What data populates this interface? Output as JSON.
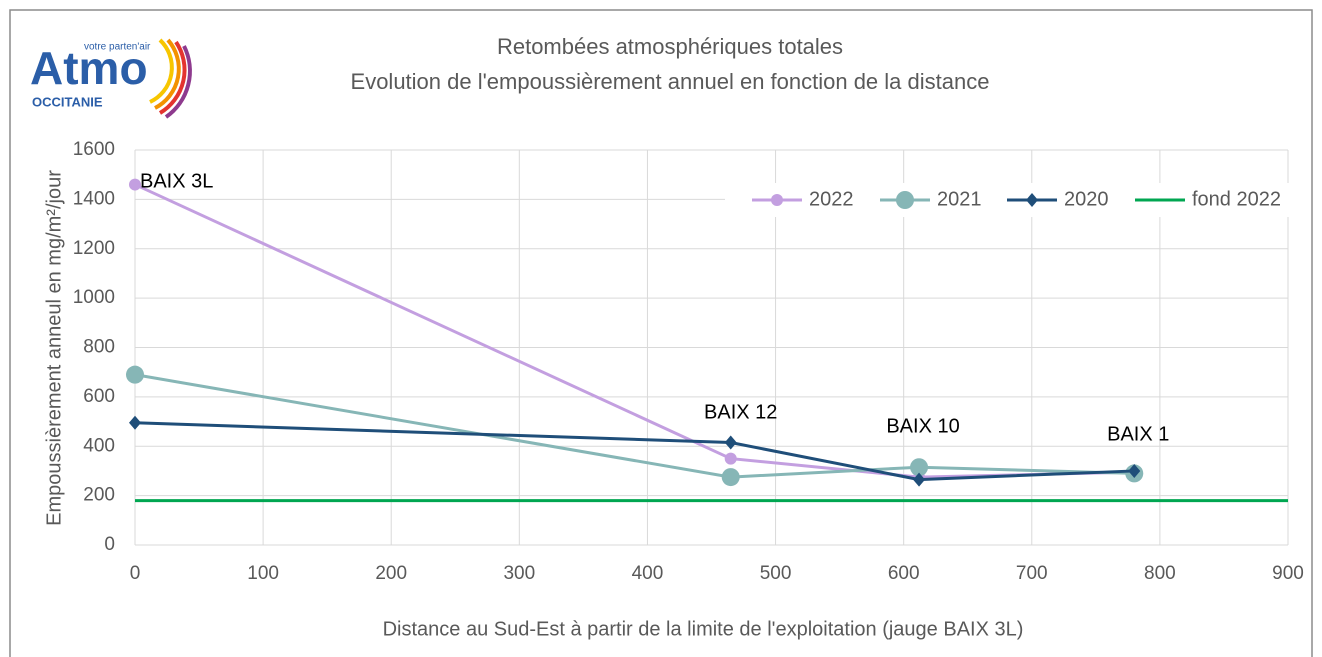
{
  "logo": {
    "tagline": "votre parten'air",
    "name": "Atmo",
    "region": "OCCITANIE"
  },
  "chart_data": {
    "type": "line",
    "title": "Retombées atmosphériques  totales",
    "subtitle": "Evolution  de l'empoussièrement  annuel en fonction de la distance",
    "x_label": "Distance au Sud-Est à partir de la limite de l'exploitation (jauge BAIX 3L)",
    "y_label": "Empoussièrement anneul en mg/m²/jour",
    "x": [
      0,
      465,
      612,
      780
    ],
    "point_labels": [
      "BAIX 3L",
      "BAIX 12",
      "BAIX 10",
      "BAIX 1"
    ],
    "series": [
      {
        "name": "2022",
        "color": "#c39fe0",
        "marker": "circle",
        "values": [
          1460,
          350,
          275,
          295
        ]
      },
      {
        "name": "2021",
        "color": "#86b6b6",
        "marker": "large-circle",
        "values": [
          690,
          275,
          315,
          290
        ]
      },
      {
        "name": "2020",
        "color": "#1f4e79",
        "marker": "diamond",
        "values": [
          495,
          415,
          265,
          300
        ]
      },
      {
        "name": "fond 2022",
        "color": "#00a651",
        "marker": "none",
        "x": [
          0,
          900
        ],
        "values": [
          180,
          180
        ]
      }
    ],
    "xlim": [
      0,
      900
    ],
    "xticks": [
      0,
      100,
      200,
      300,
      400,
      500,
      600,
      700,
      800,
      900
    ],
    "ylim": [
      0,
      1600
    ],
    "yticks": [
      0,
      200,
      400,
      600,
      800,
      1000,
      1200,
      1400,
      1600
    ],
    "grid": true,
    "legend": "top-right"
  }
}
